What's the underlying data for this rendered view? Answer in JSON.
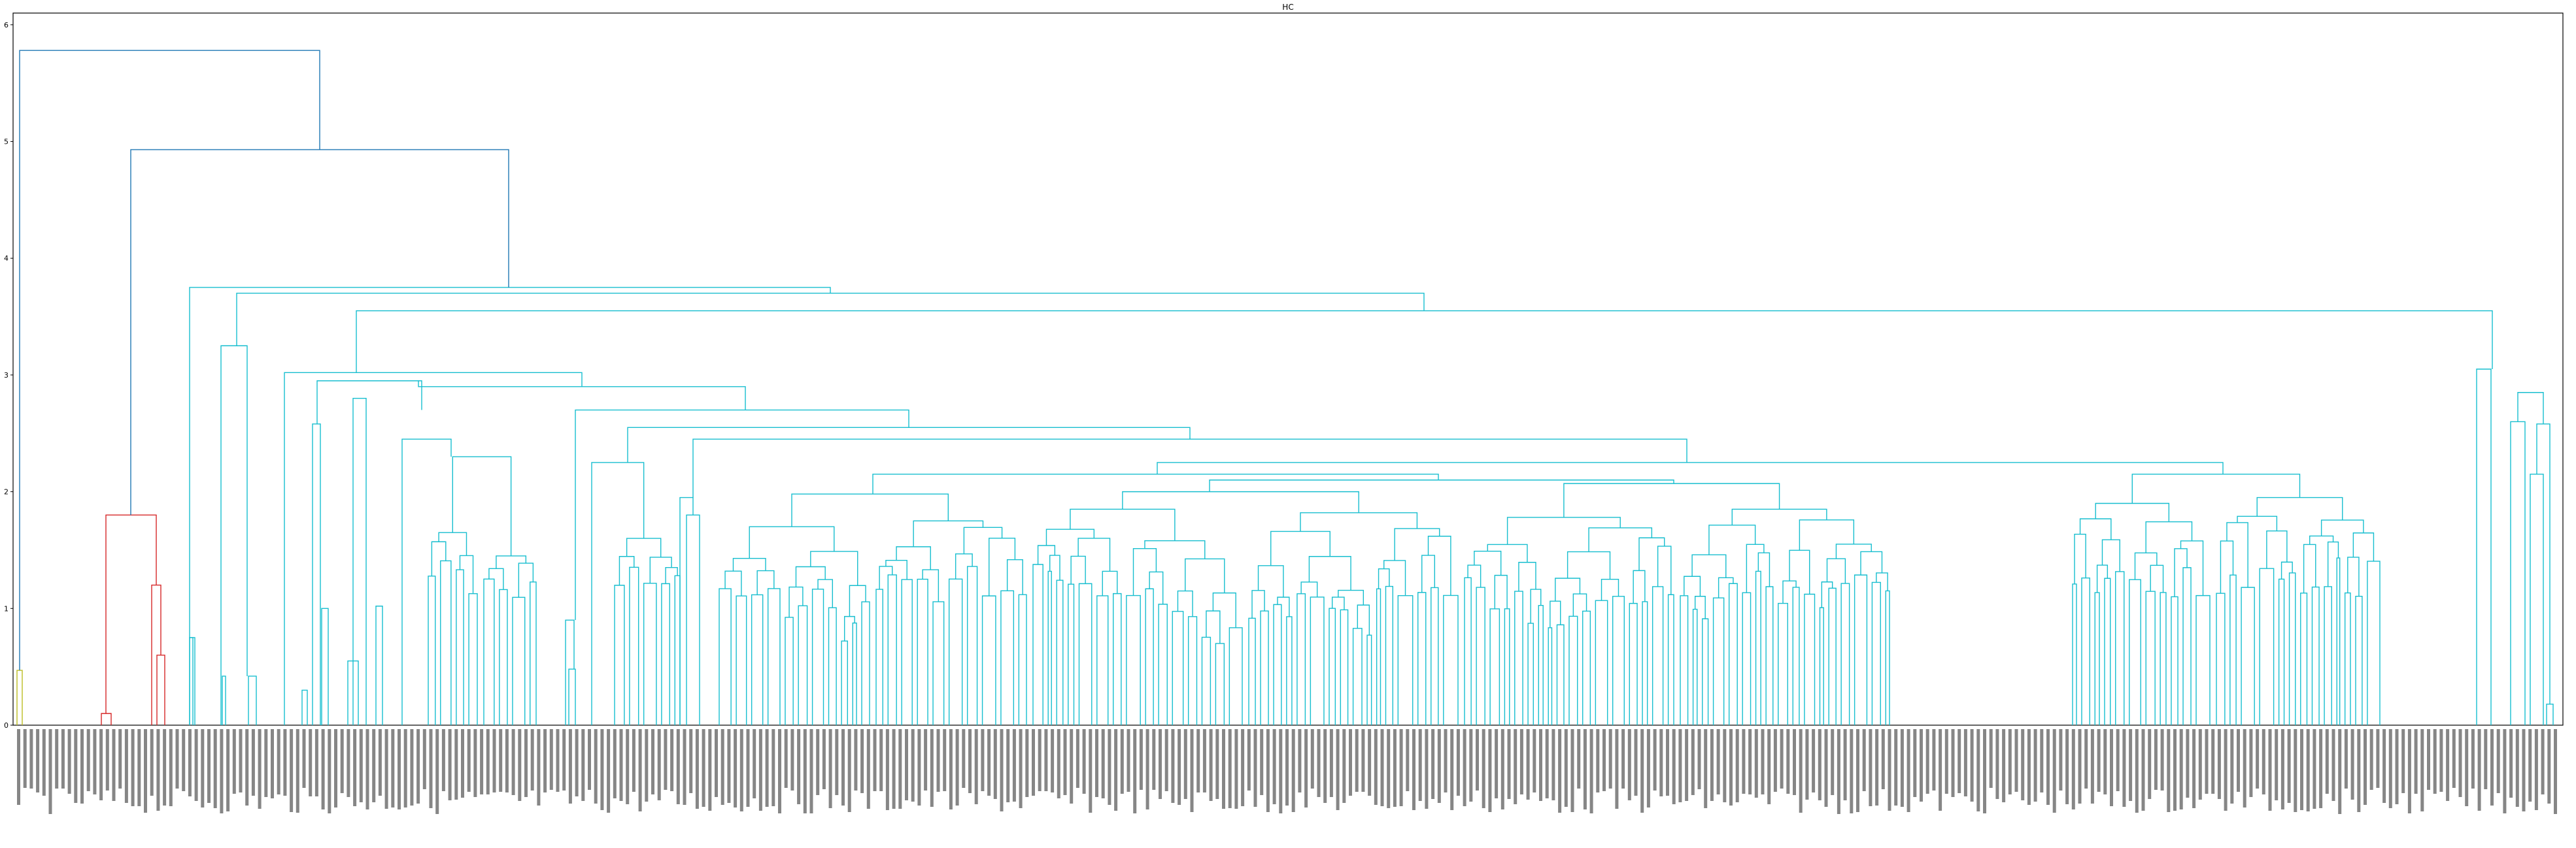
{
  "chart_data": {
    "type": "dendrogram",
    "title": "HC",
    "xlabel": "",
    "ylabel": "",
    "ylim": [
      0,
      6.1
    ],
    "yticks": [
      0,
      1,
      2,
      3,
      4,
      5,
      6
    ],
    "grid": false,
    "colors": {
      "above_threshold": "#1f77b4",
      "cluster_small": "#bcbd22",
      "cluster_red": "#d62728",
      "cluster_main": "#17becf",
      "axis": "#000000"
    },
    "root_height": 5.78,
    "merges": [
      {
        "name": "root",
        "height": 5.78,
        "color": "#1f77b4"
      },
      {
        "name": "right",
        "height": 4.93,
        "color": "#1f77b4"
      },
      {
        "name": "red",
        "height": 1.8,
        "color": "#d62728"
      },
      {
        "name": "red-b",
        "height": 1.2,
        "color": "#d62728"
      },
      {
        "name": "red-c",
        "height": 0.6,
        "color": "#d62728"
      },
      {
        "name": "red-a",
        "height": 0.1,
        "color": "#d62728"
      },
      {
        "name": "olive",
        "height": 0.47,
        "color": "#bcbd22"
      },
      {
        "name": "cyan",
        "height": 3.75,
        "color": "#17becf"
      },
      {
        "name": "cyan-right",
        "height": 3.7,
        "color": "#17becf"
      },
      {
        "name": "cyan-main",
        "height": 3.55,
        "color": "#17becf"
      },
      {
        "name": "cyan-far-right",
        "height": 3.05,
        "color": "#17becf"
      },
      {
        "name": "cyan-left-a",
        "height": 3.25,
        "color": "#17becf"
      },
      {
        "name": "cyan-mid-a",
        "height": 3.02,
        "color": "#17becf"
      },
      {
        "name": "cyan-mid-b",
        "height": 2.9,
        "color": "#17becf"
      },
      {
        "name": "cyan-mid-c",
        "height": 2.7,
        "color": "#17becf"
      },
      {
        "name": "cyan-mid-d",
        "height": 2.55,
        "color": "#17becf"
      },
      {
        "name": "cyan-mid-e",
        "height": 2.45,
        "color": "#17becf"
      },
      {
        "name": "cyan-mid-f",
        "height": 2.25,
        "color": "#17becf"
      },
      {
        "name": "cyan-mid-g",
        "height": 2.07,
        "color": "#17becf"
      },
      {
        "name": "cyan-mid-h",
        "height": 1.98,
        "color": "#17becf"
      },
      {
        "name": "cyan-mid-i",
        "height": 1.95,
        "color": "#17becf"
      }
    ],
    "leaf_count": 400,
    "leaf_labels_legible": false
  }
}
